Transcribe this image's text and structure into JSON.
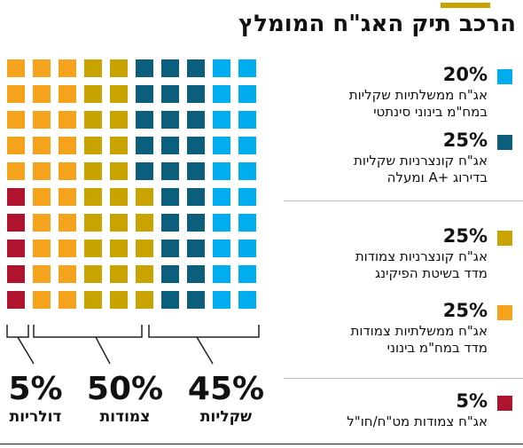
{
  "title": "הרכב תיק האג\"ח המומלץ",
  "colors": {
    "accent_bar": "#c9a400",
    "light_blue": "#00aeef",
    "dark_teal": "#0b5e7c",
    "mustard": "#c9a400",
    "orange": "#f5a21c",
    "crimson": "#b0132e"
  },
  "legend": [
    {
      "pct": "20%",
      "desc": "אג\"ח ממשלתיות שקליות\nבמח\"מ בינוני סינתטי",
      "color": "#00aeef"
    },
    {
      "pct": "25%",
      "desc": "אג\"ח קונצרניות שקליות\nבדירוג +A ומעלה",
      "color": "#0b5e7c"
    },
    {
      "pct": "25%",
      "desc": "אג\"ח קונצרניות צמודות\nמדד בשיטת הפיקינג",
      "color": "#c9a400"
    },
    {
      "pct": "25%",
      "desc": "אג\"ח ממשלתיות צמודות\nמדד במח\"מ בינוני",
      "color": "#f5a21c"
    },
    {
      "pct": "5%",
      "desc": "אג\"ח צמודות מט\"ח/חו\"ל",
      "color": "#b0132e"
    }
  ],
  "groups": [
    {
      "pct": "45%",
      "label": "שקליות"
    },
    {
      "pct": "50%",
      "label": "צמודות"
    },
    {
      "pct": "5%",
      "label": "דולריות"
    }
  ],
  "chart_data": {
    "type": "waffle",
    "title": "הרכב תיק האג\"ח המומלץ",
    "grid": {
      "columns": 10,
      "rows": 10,
      "total_units": 100
    },
    "series": [
      {
        "name": "אג\"ח ממשלתיות שקליות במח\"מ בינוני סינתטי",
        "value": 20,
        "color": "#00aeef"
      },
      {
        "name": "אג\"ח קונצרניות שקליות בדירוג +A ומעלה",
        "value": 25,
        "color": "#0b5e7c"
      },
      {
        "name": "אג\"ח קונצרניות צמודות מדד בשיטת הפיקינג",
        "value": 25,
        "color": "#c9a400"
      },
      {
        "name": "אג\"ח ממשלתיות צמודות מדד במח\"מ בינוני",
        "value": 25,
        "color": "#f5a21c"
      },
      {
        "name": "אג\"ח צמודות מט\"ח/חו\"ל",
        "value": 5,
        "color": "#b0132e"
      }
    ],
    "groups": [
      {
        "label": "שקליות",
        "value": 45
      },
      {
        "label": "צמודות",
        "value": 50
      },
      {
        "label": "דולריות",
        "value": 5
      }
    ]
  }
}
